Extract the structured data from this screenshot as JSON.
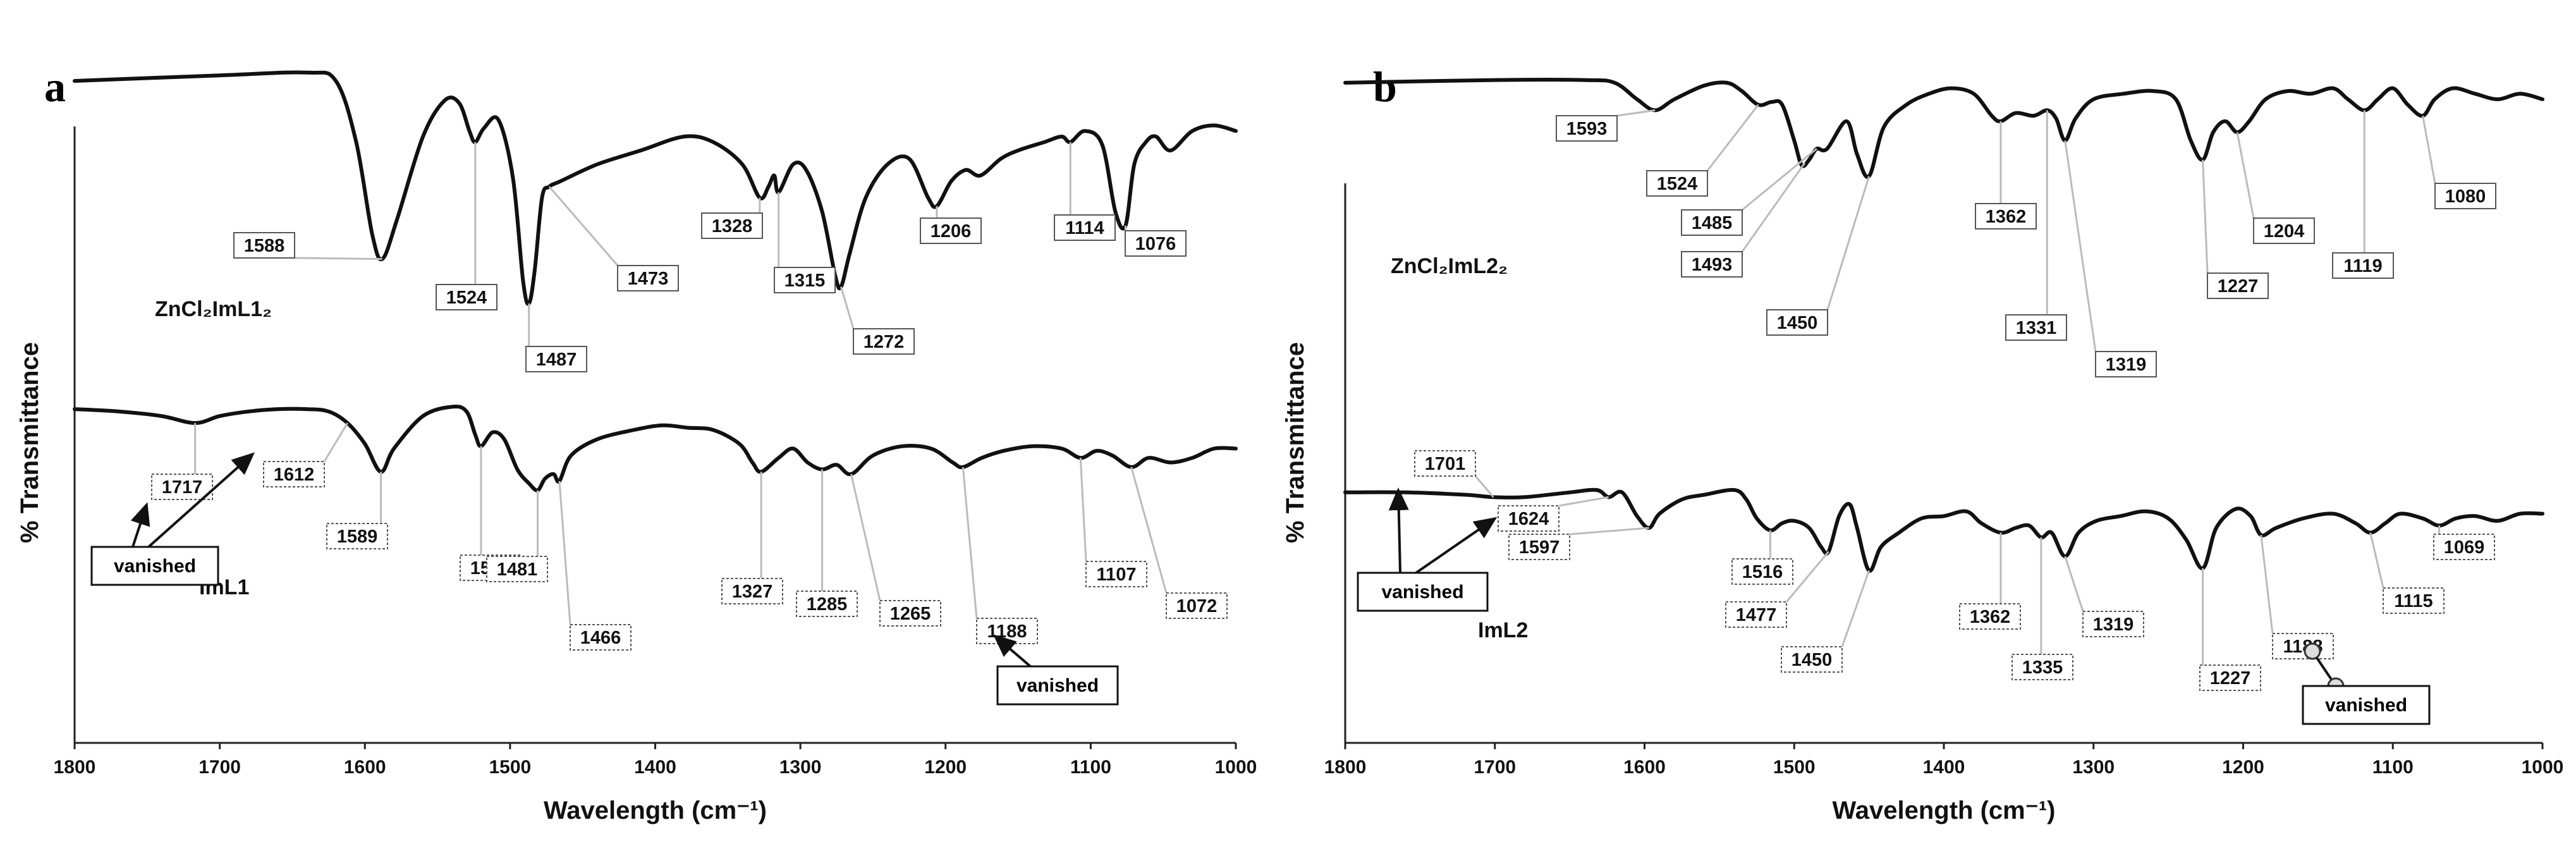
{
  "chart_data": [
    {
      "type": "line",
      "panel": "a",
      "xlabel": "Wavelength (cm⁻¹)",
      "ylabel": "% Transmittance",
      "xlim": [
        1800,
        1000
      ],
      "x_ticks": [
        1800,
        1700,
        1600,
        1500,
        1400,
        1300,
        1200,
        1100,
        1000
      ],
      "grid": false,
      "series": [
        {
          "name": "ZnCl₂ImL1₂",
          "peaks": [
            1588,
            1524,
            1487,
            1473,
            1328,
            1315,
            1272,
            1206,
            1114,
            1076
          ],
          "points": [
            [
              1800,
              0.8
            ],
            [
              1700,
              0.82
            ],
            [
              1640,
              0.83
            ],
            [
              1620,
              0.8
            ],
            [
              1606,
              0.58
            ],
            [
              1595,
              0.25
            ],
            [
              1588,
              0.16
            ],
            [
              1578,
              0.3
            ],
            [
              1560,
              0.6
            ],
            [
              1545,
              0.73
            ],
            [
              1535,
              0.72
            ],
            [
              1528,
              0.62
            ],
            [
              1524,
              0.58
            ],
            [
              1518,
              0.63
            ],
            [
              1508,
              0.66
            ],
            [
              1498,
              0.45
            ],
            [
              1491,
              0.08
            ],
            [
              1487,
              0.0
            ],
            [
              1483,
              0.12
            ],
            [
              1478,
              0.38
            ],
            [
              1473,
              0.42
            ],
            [
              1465,
              0.44
            ],
            [
              1440,
              0.5
            ],
            [
              1410,
              0.55
            ],
            [
              1380,
              0.6
            ],
            [
              1360,
              0.58
            ],
            [
              1340,
              0.5
            ],
            [
              1328,
              0.38
            ],
            [
              1322,
              0.42
            ],
            [
              1318,
              0.46
            ],
            [
              1315,
              0.4
            ],
            [
              1305,
              0.5
            ],
            [
              1296,
              0.48
            ],
            [
              1285,
              0.33
            ],
            [
              1276,
              0.1
            ],
            [
              1272,
              0.06
            ],
            [
              1266,
              0.18
            ],
            [
              1255,
              0.38
            ],
            [
              1240,
              0.5
            ],
            [
              1225,
              0.52
            ],
            [
              1212,
              0.38
            ],
            [
              1206,
              0.35
            ],
            [
              1196,
              0.44
            ],
            [
              1186,
              0.48
            ],
            [
              1176,
              0.46
            ],
            [
              1162,
              0.52
            ],
            [
              1150,
              0.55
            ],
            [
              1132,
              0.58
            ],
            [
              1120,
              0.6
            ],
            [
              1114,
              0.58
            ],
            [
              1104,
              0.62
            ],
            [
              1092,
              0.57
            ],
            [
              1083,
              0.33
            ],
            [
              1076,
              0.28
            ],
            [
              1070,
              0.5
            ],
            [
              1062,
              0.58
            ],
            [
              1055,
              0.6
            ],
            [
              1045,
              0.55
            ],
            [
              1030,
              0.62
            ],
            [
              1015,
              0.64
            ],
            [
              1000,
              0.62
            ]
          ]
        },
        {
          "name": "ImL1",
          "peaks": [
            1717,
            1612,
            1589,
            1520,
            1481,
            1466,
            1327,
            1285,
            1265,
            1188,
            1107,
            1072
          ],
          "points": [
            [
              1800,
              0.73
            ],
            [
              1770,
              0.72
            ],
            [
              1740,
              0.7
            ],
            [
              1717,
              0.67
            ],
            [
              1700,
              0.7
            ],
            [
              1680,
              0.72
            ],
            [
              1660,
              0.73
            ],
            [
              1640,
              0.73
            ],
            [
              1625,
              0.72
            ],
            [
              1612,
              0.67
            ],
            [
              1600,
              0.58
            ],
            [
              1589,
              0.46
            ],
            [
              1580,
              0.56
            ],
            [
              1560,
              0.7
            ],
            [
              1540,
              0.74
            ],
            [
              1530,
              0.72
            ],
            [
              1524,
              0.62
            ],
            [
              1520,
              0.57
            ],
            [
              1512,
              0.63
            ],
            [
              1504,
              0.6
            ],
            [
              1495,
              0.47
            ],
            [
              1487,
              0.41
            ],
            [
              1481,
              0.38
            ],
            [
              1476,
              0.43
            ],
            [
              1470,
              0.45
            ],
            [
              1466,
              0.42
            ],
            [
              1458,
              0.53
            ],
            [
              1440,
              0.6
            ],
            [
              1415,
              0.64
            ],
            [
              1395,
              0.66
            ],
            [
              1378,
              0.65
            ],
            [
              1360,
              0.64
            ],
            [
              1342,
              0.58
            ],
            [
              1333,
              0.5
            ],
            [
              1327,
              0.46
            ],
            [
              1315,
              0.52
            ],
            [
              1305,
              0.56
            ],
            [
              1295,
              0.5
            ],
            [
              1285,
              0.47
            ],
            [
              1275,
              0.49
            ],
            [
              1265,
              0.45
            ],
            [
              1250,
              0.53
            ],
            [
              1230,
              0.57
            ],
            [
              1210,
              0.56
            ],
            [
              1195,
              0.5
            ],
            [
              1188,
              0.48
            ],
            [
              1175,
              0.52
            ],
            [
              1160,
              0.55
            ],
            [
              1140,
              0.57
            ],
            [
              1120,
              0.56
            ],
            [
              1107,
              0.52
            ],
            [
              1096,
              0.55
            ],
            [
              1085,
              0.53
            ],
            [
              1072,
              0.48
            ],
            [
              1060,
              0.52
            ],
            [
              1045,
              0.5
            ],
            [
              1030,
              0.52
            ],
            [
              1015,
              0.56
            ],
            [
              1000,
              0.56
            ]
          ]
        }
      ],
      "annotations": [
        {
          "text": "vanished",
          "points_to": [
            1717,
            1612
          ]
        },
        {
          "text": "vanished",
          "points_to": [
            1188
          ]
        }
      ]
    },
    {
      "type": "line",
      "panel": "b",
      "xlabel": "Wavelength (cm⁻¹)",
      "ylabel": "% Transmittance",
      "xlim": [
        1800,
        1000
      ],
      "x_ticks": [
        1800,
        1700,
        1600,
        1500,
        1400,
        1300,
        1200,
        1100,
        1000
      ],
      "grid": false,
      "series": [
        {
          "name": "ZnCl₂ImL2₂",
          "peaks": [
            1593,
            1524,
            1485,
            1493,
            1450,
            1362,
            1331,
            1319,
            1227,
            1204,
            1119,
            1080
          ],
          "points": [
            [
              1800,
              0.86
            ],
            [
              1700,
              0.87
            ],
            [
              1640,
              0.87
            ],
            [
              1620,
              0.86
            ],
            [
              1605,
              0.8
            ],
            [
              1593,
              0.76
            ],
            [
              1580,
              0.8
            ],
            [
              1560,
              0.85
            ],
            [
              1545,
              0.86
            ],
            [
              1535,
              0.83
            ],
            [
              1524,
              0.78
            ],
            [
              1515,
              0.79
            ],
            [
              1508,
              0.78
            ],
            [
              1500,
              0.65
            ],
            [
              1495,
              0.56
            ],
            [
              1490,
              0.58
            ],
            [
              1485,
              0.62
            ],
            [
              1478,
              0.62
            ],
            [
              1465,
              0.72
            ],
            [
              1458,
              0.6
            ],
            [
              1450,
              0.52
            ],
            [
              1440,
              0.7
            ],
            [
              1425,
              0.78
            ],
            [
              1410,
              0.82
            ],
            [
              1395,
              0.84
            ],
            [
              1380,
              0.82
            ],
            [
              1368,
              0.74
            ],
            [
              1362,
              0.72
            ],
            [
              1352,
              0.75
            ],
            [
              1340,
              0.74
            ],
            [
              1331,
              0.76
            ],
            [
              1325,
              0.73
            ],
            [
              1319,
              0.65
            ],
            [
              1312,
              0.73
            ],
            [
              1300,
              0.8
            ],
            [
              1280,
              0.82
            ],
            [
              1260,
              0.83
            ],
            [
              1245,
              0.8
            ],
            [
              1235,
              0.65
            ],
            [
              1227,
              0.58
            ],
            [
              1220,
              0.68
            ],
            [
              1212,
              0.72
            ],
            [
              1204,
              0.68
            ],
            [
              1196,
              0.72
            ],
            [
              1185,
              0.8
            ],
            [
              1170,
              0.83
            ],
            [
              1155,
              0.82
            ],
            [
              1140,
              0.84
            ],
            [
              1130,
              0.8
            ],
            [
              1119,
              0.76
            ],
            [
              1110,
              0.8
            ],
            [
              1100,
              0.84
            ],
            [
              1090,
              0.78
            ],
            [
              1080,
              0.74
            ],
            [
              1072,
              0.8
            ],
            [
              1060,
              0.84
            ],
            [
              1045,
              0.82
            ],
            [
              1030,
              0.8
            ],
            [
              1015,
              0.82
            ],
            [
              1000,
              0.8
            ]
          ]
        },
        {
          "name": "ImL2",
          "peaks": [
            1701,
            1624,
            1597,
            1516,
            1477,
            1450,
            1362,
            1335,
            1319,
            1227,
            1188,
            1115,
            1069
          ],
          "points": [
            [
              1800,
              0.55
            ],
            [
              1760,
              0.55
            ],
            [
              1720,
              0.54
            ],
            [
              1701,
              0.53
            ],
            [
              1680,
              0.53
            ],
            [
              1650,
              0.55
            ],
            [
              1632,
              0.56
            ],
            [
              1624,
              0.53
            ],
            [
              1615,
              0.55
            ],
            [
              1605,
              0.45
            ],
            [
              1597,
              0.4
            ],
            [
              1590,
              0.46
            ],
            [
              1575,
              0.52
            ],
            [
              1560,
              0.54
            ],
            [
              1540,
              0.56
            ],
            [
              1532,
              0.52
            ],
            [
              1525,
              0.44
            ],
            [
              1516,
              0.39
            ],
            [
              1508,
              0.42
            ],
            [
              1500,
              0.43
            ],
            [
              1490,
              0.4
            ],
            [
              1482,
              0.32
            ],
            [
              1477,
              0.3
            ],
            [
              1470,
              0.45
            ],
            [
              1463,
              0.5
            ],
            [
              1458,
              0.4
            ],
            [
              1450,
              0.22
            ],
            [
              1442,
              0.32
            ],
            [
              1430,
              0.38
            ],
            [
              1415,
              0.44
            ],
            [
              1400,
              0.45
            ],
            [
              1385,
              0.47
            ],
            [
              1375,
              0.42
            ],
            [
              1362,
              0.38
            ],
            [
              1352,
              0.4
            ],
            [
              1343,
              0.41
            ],
            [
              1335,
              0.36
            ],
            [
              1328,
              0.38
            ],
            [
              1319,
              0.28
            ],
            [
              1310,
              0.38
            ],
            [
              1298,
              0.43
            ],
            [
              1282,
              0.45
            ],
            [
              1265,
              0.47
            ],
            [
              1250,
              0.44
            ],
            [
              1238,
              0.35
            ],
            [
              1227,
              0.23
            ],
            [
              1218,
              0.4
            ],
            [
              1205,
              0.48
            ],
            [
              1195,
              0.45
            ],
            [
              1188,
              0.37
            ],
            [
              1178,
              0.4
            ],
            [
              1160,
              0.44
            ],
            [
              1140,
              0.46
            ],
            [
              1125,
              0.42
            ],
            [
              1115,
              0.38
            ],
            [
              1105,
              0.42
            ],
            [
              1095,
              0.46
            ],
            [
              1080,
              0.44
            ],
            [
              1069,
              0.41
            ],
            [
              1058,
              0.44
            ],
            [
              1045,
              0.45
            ],
            [
              1030,
              0.43
            ],
            [
              1015,
              0.46
            ],
            [
              1000,
              0.46
            ]
          ]
        }
      ],
      "annotations": [
        {
          "text": "vanished",
          "points_to": [
            1701,
            1624
          ]
        },
        {
          "text": "vanished",
          "points_to": [
            1188
          ]
        }
      ]
    }
  ]
}
